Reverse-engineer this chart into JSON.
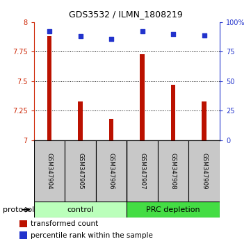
{
  "title": "GDS3532 / ILMN_1808219",
  "samples": [
    "GSM347904",
    "GSM347905",
    "GSM347906",
    "GSM347907",
    "GSM347908",
    "GSM347909"
  ],
  "red_values": [
    7.88,
    7.33,
    7.18,
    7.73,
    7.47,
    7.33
  ],
  "blue_values": [
    92,
    88,
    86,
    92,
    90,
    89
  ],
  "ylim_left": [
    7.0,
    8.0
  ],
  "ylim_right": [
    0,
    100
  ],
  "yticks_left": [
    7.0,
    7.25,
    7.5,
    7.75,
    8.0
  ],
  "yticks_right": [
    0,
    25,
    50,
    75,
    100
  ],
  "ytick_labels_left": [
    "7",
    "7.25",
    "7.5",
    "7.75",
    "8"
  ],
  "ytick_labels_right": [
    "0",
    "25",
    "50",
    "75",
    "100%"
  ],
  "groups": [
    {
      "label": "control",
      "start": 0,
      "end": 3,
      "color": "#bbffbb"
    },
    {
      "label": "PRC depletion",
      "start": 3,
      "end": 6,
      "color": "#44dd44"
    }
  ],
  "bar_color": "#bb1100",
  "dot_color": "#2233cc",
  "bar_width": 0.15,
  "protocol_label": "protocol",
  "legend_red_label": "transformed count",
  "legend_blue_label": "percentile rank within the sample",
  "left_axis_color": "#cc2200",
  "right_axis_color": "#2233cc",
  "sample_box_color": "#c8c8c8",
  "gridline_ticks": [
    7.25,
    7.5,
    7.75
  ]
}
